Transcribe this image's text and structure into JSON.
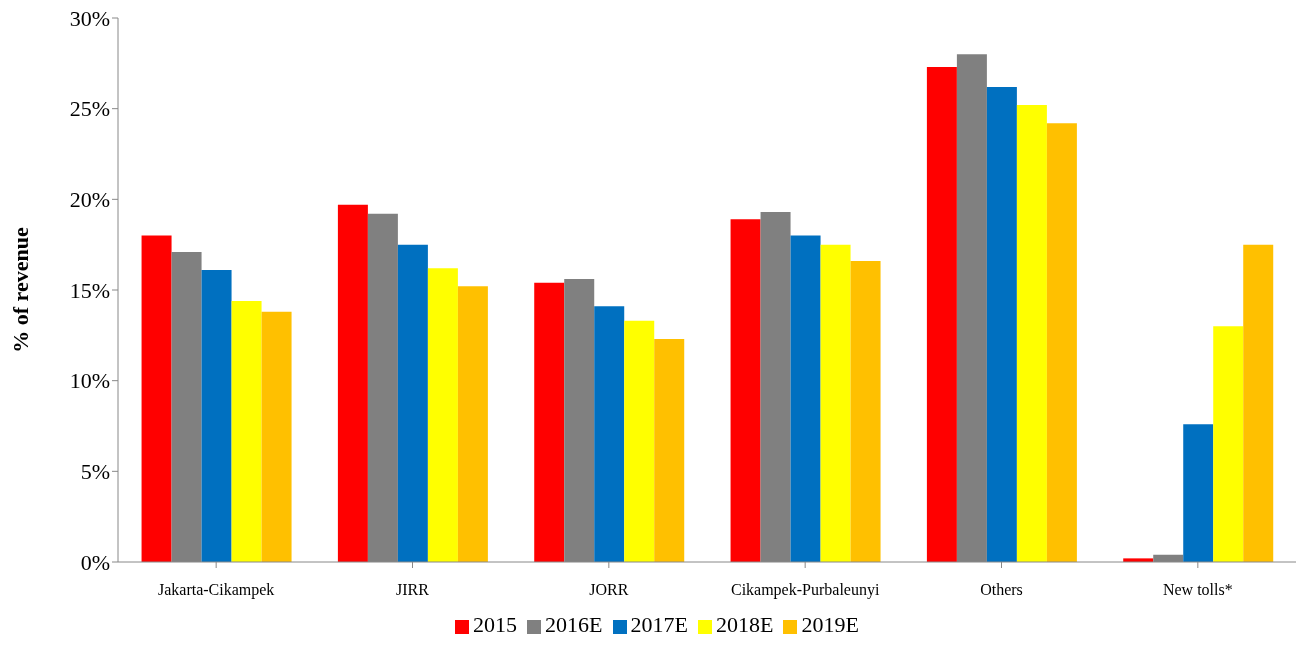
{
  "chart_data": {
    "type": "bar",
    "ylabel": "% of revenue",
    "categories": [
      "Jakarta-Cikampek",
      "JIRR",
      "JORR",
      "Cikampek-Purbaleunyi",
      "Others",
      "New tolls*"
    ],
    "series": [
      {
        "name": "2015",
        "color": "#ff0000",
        "values": [
          18.0,
          19.7,
          15.4,
          18.9,
          27.3,
          0.2
        ]
      },
      {
        "name": "2016E",
        "color": "#808080",
        "values": [
          17.1,
          19.2,
          15.6,
          19.3,
          28.0,
          0.4
        ]
      },
      {
        "name": "2017E",
        "color": "#0070c0",
        "values": [
          16.1,
          17.5,
          14.1,
          18.0,
          26.2,
          7.6
        ]
      },
      {
        "name": "2018E",
        "color": "#ffff00",
        "values": [
          14.4,
          16.2,
          13.3,
          17.5,
          25.2,
          13.0
        ]
      },
      {
        "name": "2019E",
        "color": "#ffc000",
        "values": [
          13.8,
          15.2,
          12.3,
          16.6,
          24.2,
          17.5
        ]
      }
    ],
    "ylim": [
      0,
      30
    ],
    "yticks": [
      {
        "value": 0,
        "label": "0%"
      },
      {
        "value": 5,
        "label": "5%"
      },
      {
        "value": 10,
        "label": "10%"
      },
      {
        "value": 15,
        "label": "15%"
      },
      {
        "value": 20,
        "label": "20%"
      },
      {
        "value": 25,
        "label": "25%"
      },
      {
        "value": 30,
        "label": "30%"
      }
    ],
    "grid": false,
    "legend": "bottom"
  }
}
